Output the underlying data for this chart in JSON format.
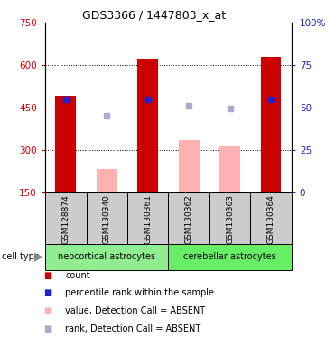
{
  "title": "GDS3366 / 1447803_x_at",
  "samples": [
    "GSM128874",
    "GSM130340",
    "GSM130361",
    "GSM130362",
    "GSM130363",
    "GSM130364"
  ],
  "cell_types": [
    {
      "label": "neocortical astrocytes",
      "color": "#90EE90"
    },
    {
      "label": "cerebellar astrocytes",
      "color": "#66EE66"
    }
  ],
  "red_bars": [
    490,
    null,
    622,
    null,
    null,
    628
  ],
  "pink_bars": [
    null,
    232,
    null,
    335,
    312,
    null
  ],
  "blue_squares": [
    478,
    null,
    478,
    null,
    null,
    478
  ],
  "lavender_squares": [
    null,
    422,
    null,
    458,
    446,
    null
  ],
  "ylim_left": [
    150,
    750
  ],
  "ylim_right": [
    0,
    100
  ],
  "yticks_left": [
    150,
    300,
    450,
    600,
    750
  ],
  "yticks_right": [
    0,
    25,
    50,
    75,
    100
  ],
  "right_tick_labels": [
    "0",
    "25",
    "50",
    "75",
    "100%"
  ],
  "grid_yticks": [
    300,
    450,
    600
  ],
  "red_color": "#cc0000",
  "pink_color": "#ffb0b0",
  "blue_color": "#2222cc",
  "lavender_color": "#aaaacc",
  "left_tick_color": "#cc0000",
  "right_tick_color": "#2222cc",
  "bar_width": 0.5,
  "legend": [
    {
      "color": "#cc0000",
      "marker": "s",
      "label": "count"
    },
    {
      "color": "#2222cc",
      "marker": "s",
      "label": "percentile rank within the sample"
    },
    {
      "color": "#ffb0b0",
      "marker": "s",
      "label": "value, Detection Call = ABSENT"
    },
    {
      "color": "#aaaacc",
      "marker": "s",
      "label": "rank, Detection Call = ABSENT"
    }
  ]
}
